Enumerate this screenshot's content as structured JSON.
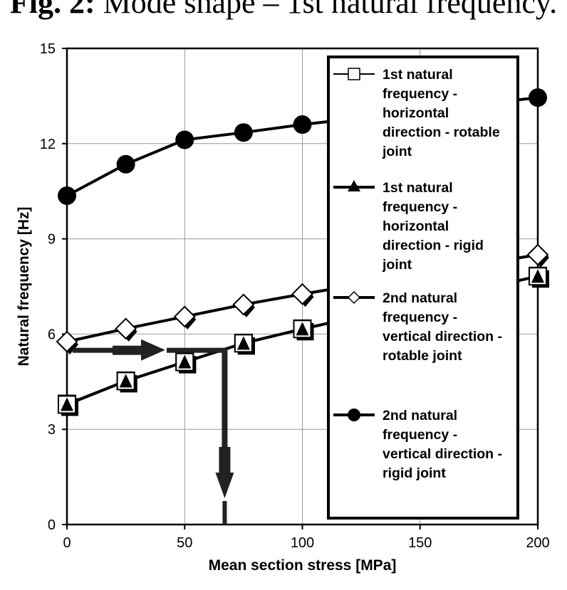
{
  "figure_title": {
    "prefix": "Fig. 2:",
    "text": "Mode shape – 1st natural frequency."
  },
  "chart_data": {
    "type": "line",
    "xlabel": "Mean section stress [MPa]",
    "ylabel": "Natural frequency [Hz]",
    "xlim": [
      0,
      200
    ],
    "ylim": [
      0,
      15
    ],
    "xticks": [
      0,
      50,
      100,
      150,
      200
    ],
    "yticks": [
      0,
      3,
      6,
      9,
      12,
      15
    ],
    "grid": true,
    "legend_position": "right",
    "series": [
      {
        "name": "1st natural frequency - horizontal direction - rotable joint",
        "legend_lines": [
          "1st natural",
          "frequency -",
          "horizontal",
          "direction - rotable",
          "joint"
        ],
        "marker": "square-open",
        "x": [
          0,
          25,
          50,
          75,
          100,
          200
        ],
        "y": [
          3.8,
          4.53,
          5.13,
          5.72,
          6.17,
          7.83
        ]
      },
      {
        "name": "1st natural frequency - horizontal direction - rigid joint",
        "legend_lines": [
          "1st natural",
          "frequency -",
          "horizontal",
          "direction - rigid",
          "joint"
        ],
        "marker": "triangle-filled",
        "x": [
          0,
          25,
          50,
          75,
          100,
          200
        ],
        "y": [
          3.78,
          4.52,
          5.12,
          5.71,
          6.16,
          7.82
        ]
      },
      {
        "name": "2nd natural frequency - vertical direction - rotable joint",
        "legend_lines": [
          "2nd natural",
          "frequency -",
          "vertical direction -",
          "rotable joint"
        ],
        "marker": "diamond-open",
        "x": [
          0,
          25,
          50,
          75,
          100,
          200
        ],
        "y": [
          5.76,
          6.17,
          6.55,
          6.93,
          7.26,
          8.5
        ]
      },
      {
        "name": "2nd natural frequency - vertical direction - rigid joint",
        "legend_lines": [
          "2nd natural",
          "frequency -",
          "vertical direction -",
          "rigid joint"
        ],
        "marker": "circle-filled",
        "x": [
          0,
          25,
          50,
          75,
          100,
          200
        ],
        "y": [
          10.36,
          11.35,
          12.12,
          12.35,
          12.6,
          13.45
        ]
      }
    ],
    "annotations": [
      {
        "type": "arrow-right",
        "from": [
          0,
          5.5
        ],
        "to": [
          67,
          5.5
        ]
      },
      {
        "type": "arrow-down",
        "from": [
          67,
          5.5
        ],
        "to": [
          67,
          0
        ]
      }
    ]
  }
}
